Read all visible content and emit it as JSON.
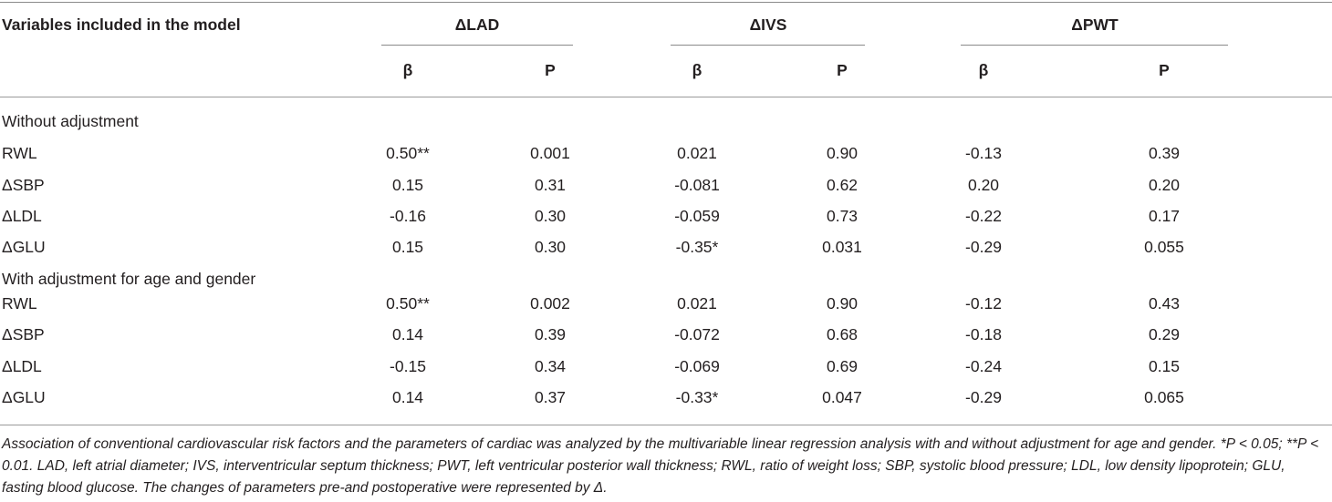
{
  "header": {
    "variables_label": "Variables included in the model",
    "groups": [
      "ΔLAD",
      "ΔIVS",
      "ΔPWT"
    ],
    "subheaders": [
      "β",
      "P",
      "β",
      "P",
      "β",
      "P"
    ]
  },
  "sections": [
    {
      "title": "Without adjustment",
      "rows": [
        {
          "label": "RWL",
          "values": [
            "0.50**",
            "0.001",
            "0.021",
            "0.90",
            "-0.13",
            "0.39"
          ]
        },
        {
          "label": "ΔSBP",
          "values": [
            "0.15",
            "0.31",
            "-0.081",
            "0.62",
            "0.20",
            "0.20"
          ]
        },
        {
          "label": "ΔLDL",
          "values": [
            "-0.16",
            "0.30",
            "-0.059",
            "0.73",
            "-0.22",
            "0.17"
          ]
        },
        {
          "label": "ΔGLU",
          "values": [
            "0.15",
            "0.30",
            "-0.35*",
            "0.031",
            "-0.29",
            "0.055"
          ]
        }
      ]
    },
    {
      "title": "With adjustment for age and gender",
      "rows": [
        {
          "label": "RWL",
          "values": [
            "0.50**",
            "0.002",
            "0.021",
            "0.90",
            "-0.12",
            "0.43"
          ]
        },
        {
          "label": "ΔSBP",
          "values": [
            "0.14",
            "0.39",
            "-0.072",
            "0.68",
            "-0.18",
            "0.29"
          ]
        },
        {
          "label": "ΔLDL",
          "values": [
            "-0.15",
            "0.34",
            "-0.069",
            "0.69",
            "-0.24",
            "0.15"
          ]
        },
        {
          "label": "ΔGLU",
          "values": [
            "0.14",
            "0.37",
            "-0.33*",
            "0.047",
            "-0.29",
            "0.065"
          ]
        }
      ]
    }
  ],
  "footnote": "Association of conventional cardiovascular risk factors and the parameters of cardiac was analyzed by the multivariable linear regression analysis with and without adjustment for age and gender. *P < 0.05; **P < 0.01. LAD, left atrial diameter; IVS, interventricular septum thickness; PWT, left ventricular posterior wall thickness; RWL,  ratio of weight loss; SBP, systolic blood pressure; LDL, low density lipoprotein; GLU, fasting blood glucose. The changes of parameters pre-and postoperative were represented by Δ."
}
